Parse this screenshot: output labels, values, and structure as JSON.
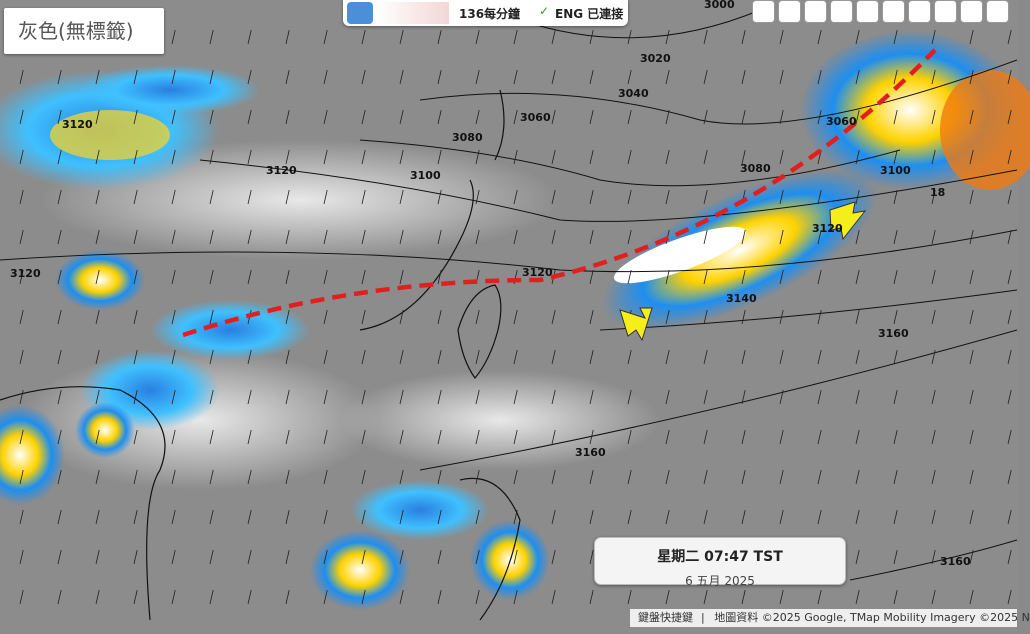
{
  "map_style_label": "灰色(無標籤)",
  "top_bar": {
    "rate": "136每分鐘",
    "status": "ENG 已連接"
  },
  "contour_labels": [
    "3000",
    "3020",
    "3040",
    "3060",
    "3060",
    "3080",
    "3080",
    "3100",
    "3100",
    "3120",
    "3120",
    "3120",
    "3120",
    "3120",
    "3140",
    "3160",
    "3160",
    "3160",
    "18"
  ],
  "time_box": {
    "time": "星期二 07:47 TST",
    "date": "6 五月 2025"
  },
  "footer": {
    "shortcuts": "鍵盤快捷鍵",
    "attribution": "地圖資料 ©2025 Google, TMap Mobility Imagery ©2025 N"
  }
}
